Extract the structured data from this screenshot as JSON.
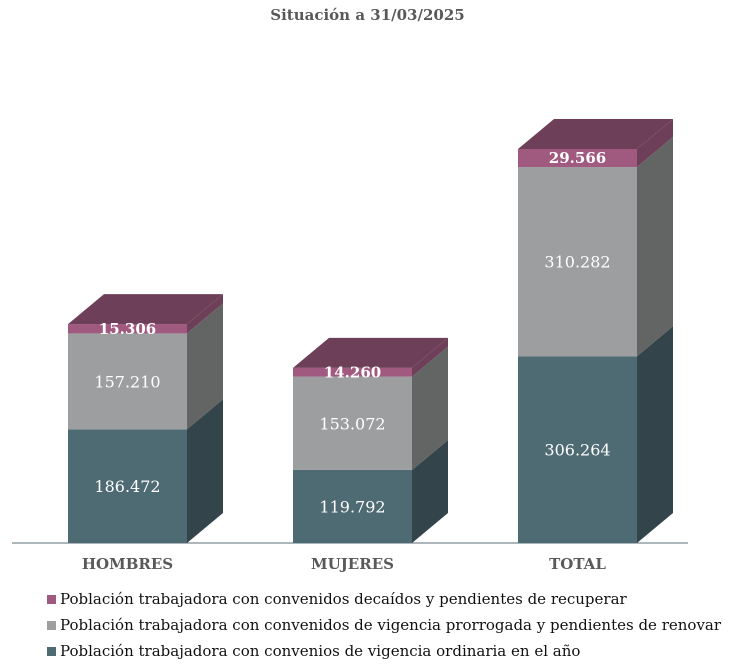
{
  "chart_data": {
    "type": "bar",
    "stacked": true,
    "three_d": true,
    "title": "Situación a 31/03/2025",
    "categories": [
      "HOMBRES",
      "MUJERES",
      "TOTAL"
    ],
    "series": [
      {
        "name": "Población trabajadora con convenios de vigencia ordinaria en el año",
        "values": [
          186472,
          119792,
          306264
        ],
        "labels": [
          "186.472",
          "119.792",
          "306.264"
        ],
        "color": "#4e6a73",
        "side_color": "#33444b"
      },
      {
        "name": "Población trabajadora con convenidos de vigencia prorrogada y pendientes de renovar",
        "values": [
          157210,
          153072,
          310282
        ],
        "labels": [
          "157.210",
          "153.072",
          "310.282"
        ],
        "color": "#9d9ea0",
        "side_color": "#636564"
      },
      {
        "name": "Población trabajadora con convenidos decaídos y pendientes de recuperar",
        "values": [
          15306,
          14260,
          29566
        ],
        "labels": [
          "15.306",
          "14.260",
          "29.566"
        ],
        "color": "#a05a80",
        "side_color": "#6e3f58"
      }
    ],
    "legend_position": "bottom-left",
    "legend_order": [
      2,
      1,
      0
    ],
    "grid": false,
    "xlabel": "",
    "ylabel": ""
  }
}
